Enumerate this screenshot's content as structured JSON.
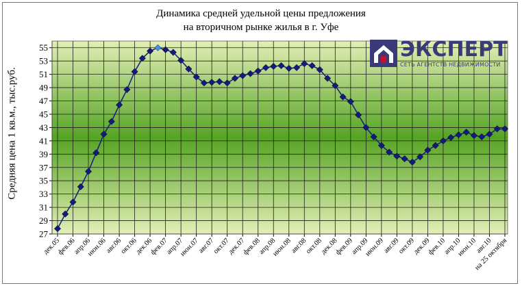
{
  "chart_data": {
    "type": "line",
    "title_line1": "Динамика средней удельной цены предложения",
    "title_line2": "на вторичном рынке жилья в г. Уфе",
    "xlabel": "",
    "ylabel": "Средняя цена 1 кв.м., тыс.руб.",
    "ylim": [
      27,
      56
    ],
    "yticks": [
      27,
      29,
      31,
      33,
      35,
      37,
      39,
      41,
      43,
      45,
      47,
      49,
      51,
      53,
      55
    ],
    "grid": true,
    "x_labels": [
      "дек.05",
      "фев.06",
      "апр.06",
      "июн.06",
      "авг.06",
      "окт.06",
      "дек.06",
      "фев.07",
      "апр.07",
      "июн.07",
      "авг.07",
      "окт.07",
      "дек.07",
      "фев.08",
      "апр.08",
      "июн.08",
      "авг.08",
      "окт.08",
      "дек.08",
      "фев.09",
      "апр.09",
      "июн.09",
      "авг.09",
      "окт.09",
      "дек.09",
      "фев.10",
      "апр.10",
      "июн.10",
      "авг.10",
      "на 25 октября"
    ],
    "series": [
      {
        "values": [
          27.8,
          30.0,
          31.8,
          34.1,
          36.4,
          39.2,
          42.0,
          43.9,
          46.4,
          48.7,
          51.4,
          53.4,
          54.5,
          55.0,
          54.7,
          54.3,
          53.1,
          51.8,
          50.6,
          49.7,
          49.8,
          49.9,
          49.7,
          50.4,
          50.8,
          51.1,
          51.5,
          52.0,
          52.2,
          52.3,
          51.9,
          52.0,
          52.6,
          52.3,
          51.7,
          50.4,
          49.3,
          47.6,
          46.9,
          44.9,
          43.0,
          41.6,
          40.3,
          39.3,
          38.7,
          38.3,
          37.8,
          38.6,
          39.6,
          40.3,
          41.0,
          41.5,
          41.9,
          42.3,
          41.8,
          41.6,
          42.0,
          42.8,
          42.8
        ]
      }
    ],
    "highlight_index": 13,
    "colors": {
      "line": "#1a237e",
      "marker": "#141c78",
      "highlight_marker": "#4f8fe0",
      "band_top": "#e3efb6",
      "band_mid": "#56a424"
    }
  },
  "logo": {
    "word": "ЭКСПЕРТ",
    "tagline": "СЕТЬ АГЕНТСТВ НЕДВИЖИМОСТИ"
  }
}
